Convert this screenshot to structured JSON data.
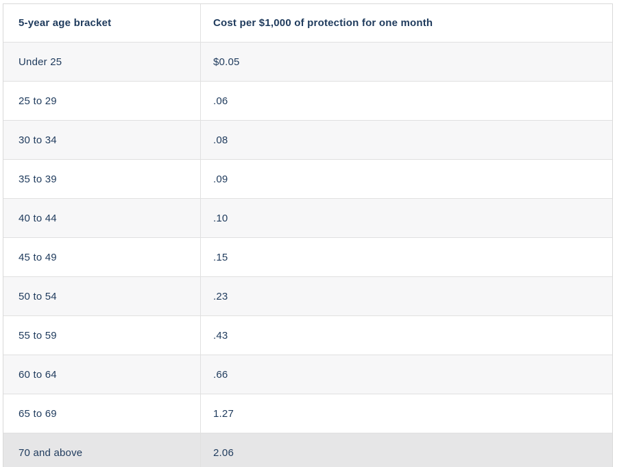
{
  "table": {
    "columns": [
      {
        "label": "5-year age bracket"
      },
      {
        "label": "Cost per $1,000 of protection for one month"
      }
    ],
    "rows": [
      {
        "age_bracket": "Under 25",
        "cost": "$0.05"
      },
      {
        "age_bracket": "25 to 29",
        "cost": ".06"
      },
      {
        "age_bracket": "30 to 34",
        "cost": ".08"
      },
      {
        "age_bracket": "35 to 39",
        "cost": ".09"
      },
      {
        "age_bracket": "40 to 44",
        "cost": ".10"
      },
      {
        "age_bracket": "45 to 49",
        "cost": ".15"
      },
      {
        "age_bracket": "50 to 54",
        "cost": ".23"
      },
      {
        "age_bracket": "55 to 59",
        "cost": ".43"
      },
      {
        "age_bracket": "60 to 64",
        "cost": ".66"
      },
      {
        "age_bracket": "65 to 69",
        "cost": "1.27"
      },
      {
        "age_bracket": "70 and above",
        "cost": "2.06"
      }
    ]
  },
  "chart_data": {
    "type": "table",
    "columns": [
      "5-year age bracket",
      "Cost per $1,000 of protection for one month"
    ],
    "categories": [
      "Under 25",
      "25 to 29",
      "30 to 34",
      "35 to 39",
      "40 to 44",
      "45 to 49",
      "50 to 54",
      "55 to 59",
      "60 to 64",
      "65 to 69",
      "70 and above"
    ],
    "values": [
      0.05,
      0.06,
      0.08,
      0.09,
      0.1,
      0.15,
      0.23,
      0.43,
      0.66,
      1.27,
      2.06
    ],
    "values_as_displayed": [
      "$0.05",
      ".06",
      ".08",
      ".09",
      ".10",
      ".15",
      ".23",
      ".43",
      ".66",
      "1.27",
      "2.06"
    ],
    "units": "dollars per $1,000 of protection per month"
  },
  "colors": {
    "text": "#1e3a5c",
    "row_stripe": "#f7f7f8",
    "last_row": "#e6e6e7",
    "border": "#d9d9d9",
    "divider": "#e0e0e0",
    "background": "#ffffff"
  }
}
